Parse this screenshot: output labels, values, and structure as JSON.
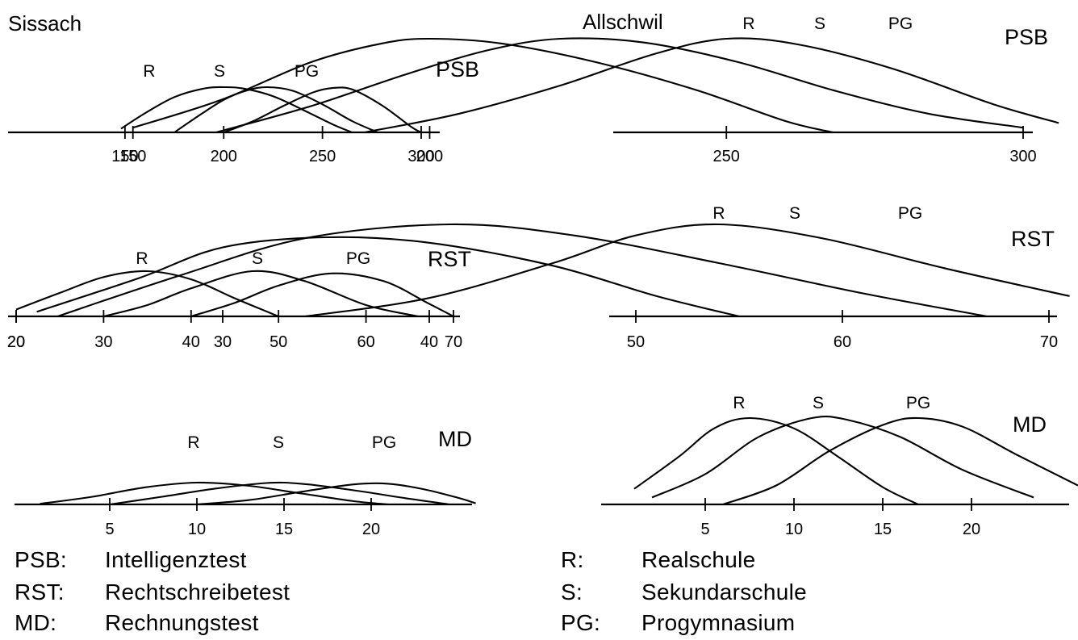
{
  "chart_data": [
    {
      "type": "line",
      "region": "Sissach",
      "test": "PSB",
      "series_labels": [
        "R",
        "S",
        "PG"
      ],
      "x_ticks": [
        150,
        200,
        250,
        300
      ],
      "xlim": [
        140,
        305
      ],
      "grid": false,
      "series": [
        {
          "name": "R",
          "x": [
            148,
            160,
            175,
            190,
            200,
            210,
            225,
            240,
            255,
            265
          ],
          "y": [
            0.08,
            0.42,
            0.78,
            0.97,
            1.0,
            0.97,
            0.8,
            0.5,
            0.18,
            0.0
          ]
        },
        {
          "name": "S",
          "x": [
            175,
            185,
            200,
            212,
            222,
            235,
            250,
            265,
            278
          ],
          "y": [
            0.0,
            0.3,
            0.72,
            0.93,
            1.0,
            0.92,
            0.62,
            0.25,
            0.0
          ]
        },
        {
          "name": "PG",
          "x": [
            200,
            215,
            230,
            245,
            255,
            265,
            280,
            295,
            300
          ],
          "y": [
            0.0,
            0.25,
            0.58,
            0.88,
            0.98,
            0.95,
            0.6,
            0.12,
            0.0
          ]
        }
      ]
    },
    {
      "type": "line",
      "region": "Allschwil",
      "test": "PSB",
      "series_labels": [
        "R",
        "S",
        "PG"
      ],
      "x_ticks": [
        150,
        200,
        250,
        300
      ],
      "xlim": [
        148,
        306
      ],
      "grid": false,
      "series": [
        {
          "name": "R",
          "x": [
            150,
            165,
            180,
            192,
            200,
            212,
            228,
            245,
            260,
            268
          ],
          "y": [
            0.05,
            0.35,
            0.75,
            0.95,
            1.0,
            0.95,
            0.75,
            0.45,
            0.12,
            0.0
          ]
        },
        {
          "name": "S",
          "x": [
            164,
            180,
            196,
            210,
            222,
            236,
            252,
            268,
            284,
            300
          ],
          "y": [
            0.0,
            0.28,
            0.62,
            0.88,
            1.0,
            0.96,
            0.75,
            0.45,
            0.2,
            0.05
          ]
        },
        {
          "name": "PG",
          "x": [
            189,
            205,
            222,
            238,
            250,
            262,
            278,
            295,
            306
          ],
          "y": [
            0.0,
            0.2,
            0.5,
            0.84,
            1.0,
            0.94,
            0.68,
            0.3,
            0.1
          ]
        }
      ]
    },
    {
      "type": "line",
      "region": "Sissach",
      "test": "RST",
      "series_labels": [
        "R",
        "S",
        "PG"
      ],
      "x_ticks": [
        20,
        30,
        40,
        50,
        60,
        70
      ],
      "xlim": [
        20,
        71
      ],
      "grid": false,
      "series": [
        {
          "name": "R",
          "x": [
            20,
            25,
            30,
            35,
            40,
            45,
            50
          ],
          "y": [
            0.15,
            0.52,
            0.87,
            1.0,
            0.82,
            0.4,
            0.0
          ]
        },
        {
          "name": "S",
          "x": [
            30,
            35,
            40,
            47,
            53,
            60,
            66
          ],
          "y": [
            0.0,
            0.25,
            0.62,
            1.0,
            0.78,
            0.25,
            0.0
          ]
        },
        {
          "name": "PG",
          "x": [
            40,
            45,
            50,
            56,
            62,
            67,
            70
          ],
          "y": [
            0.0,
            0.3,
            0.68,
            0.95,
            0.78,
            0.3,
            0.0
          ]
        }
      ]
    },
    {
      "type": "line",
      "region": "Allschwil",
      "test": "RST",
      "series_labels": [
        "R",
        "S",
        "PG"
      ],
      "x_ticks": [
        20,
        30,
        40,
        50,
        60,
        70
      ],
      "xlim": [
        20,
        71
      ],
      "grid": false,
      "series": [
        {
          "name": "R",
          "x": [
            21,
            26,
            30,
            35,
            40,
            46,
            51,
            55
          ],
          "y": [
            0.05,
            0.42,
            0.75,
            0.86,
            0.8,
            0.55,
            0.22,
            0.0
          ]
        },
        {
          "name": "S",
          "x": [
            22,
            28,
            34,
            41,
            47,
            54,
            61,
            67
          ],
          "y": [
            0.0,
            0.45,
            0.85,
            1.0,
            0.88,
            0.58,
            0.25,
            0.0
          ]
        },
        {
          "name": "PG",
          "x": [
            34,
            40,
            46,
            50,
            54,
            59,
            65,
            71
          ],
          "y": [
            0.0,
            0.2,
            0.58,
            0.88,
            1.0,
            0.85,
            0.52,
            0.22
          ]
        }
      ]
    },
    {
      "type": "line",
      "region": "Sissach",
      "test": "MD",
      "series_labels": [
        "R",
        "S",
        "PG"
      ],
      "x_ticks": [
        5,
        10,
        15,
        20
      ],
      "xlim": [
        1,
        26
      ],
      "grid": false,
      "series": [
        {
          "name": "R",
          "x": [
            1,
            4,
            7,
            10,
            13,
            16,
            19,
            21
          ],
          "y": [
            0.03,
            0.35,
            0.78,
            1.0,
            0.85,
            0.5,
            0.15,
            0.0
          ]
        },
        {
          "name": "S",
          "x": [
            5,
            8,
            11,
            14,
            16,
            19,
            22,
            24.5
          ],
          "y": [
            0.0,
            0.35,
            0.72,
            0.98,
            0.95,
            0.65,
            0.28,
            0.0
          ]
        },
        {
          "name": "PG",
          "x": [
            10,
            13,
            16,
            19,
            21,
            23,
            25,
            26
          ],
          "y": [
            0.0,
            0.2,
            0.58,
            0.92,
            0.95,
            0.7,
            0.3,
            0.05
          ]
        }
      ]
    },
    {
      "type": "line",
      "region": "Allschwil",
      "test": "MD",
      "series_labels": [
        "R",
        "S",
        "PG"
      ],
      "x_ticks": [
        5,
        10,
        15,
        20
      ],
      "xlim": [
        1,
        26
      ],
      "grid": false,
      "series": [
        {
          "name": "R",
          "x": [
            1,
            3.5,
            5.5,
            7.5,
            10,
            12.5,
            15,
            17
          ],
          "y": [
            0.18,
            0.55,
            0.88,
            1.0,
            0.88,
            0.55,
            0.2,
            0.0
          ]
        },
        {
          "name": "S",
          "x": [
            2,
            5,
            8,
            11,
            13,
            16,
            19.5,
            23.5
          ],
          "y": [
            0.08,
            0.35,
            0.78,
            1.0,
            0.98,
            0.78,
            0.4,
            0.08
          ]
        },
        {
          "name": "PG",
          "x": [
            6,
            9,
            12,
            15,
            17,
            19.5,
            22.5,
            26
          ],
          "y": [
            0.0,
            0.22,
            0.62,
            0.92,
            1.0,
            0.9,
            0.58,
            0.22
          ]
        }
      ]
    }
  ],
  "legend_left": [
    {
      "code": "PSB:",
      "desc": "Intelligenztest"
    },
    {
      "code": "RST:",
      "desc": "Rechtschreibetest"
    },
    {
      "code": "MD:",
      "desc": "Rechnungstest"
    }
  ],
  "legend_right": [
    {
      "code": "R:",
      "desc": "Realschule"
    },
    {
      "code": "S:",
      "desc": "Sekundarschule"
    },
    {
      "code": "PG:",
      "desc": "Progymnasium"
    }
  ]
}
